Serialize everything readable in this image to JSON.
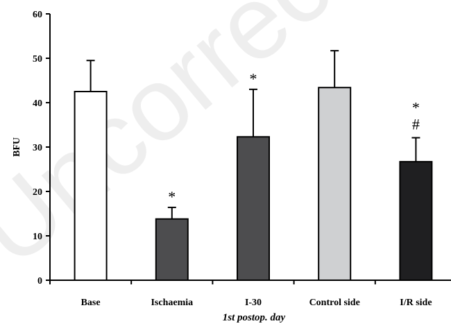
{
  "watermark": "Uncorrected",
  "chart_data": {
    "type": "bar",
    "categories": [
      "Base",
      "Ischaemia",
      "I-30",
      "Control side",
      "I/R side"
    ],
    "values": [
      42.5,
      13.8,
      32.3,
      43.4,
      26.7
    ],
    "errors": [
      7.0,
      2.6,
      10.7,
      8.3,
      5.4
    ],
    "bar_colors": [
      "#ffffff",
      "#4d4d4f",
      "#4d4d4f",
      "#cfd0d2",
      "#1f1f21"
    ],
    "markers": [
      [],
      [
        "*"
      ],
      [
        "*"
      ],
      [],
      [
        "*",
        "#"
      ]
    ],
    "ylabel": "BFU",
    "xlabel": "1st postop. day",
    "ylim": [
      0,
      60
    ],
    "yticks": [
      0,
      10,
      20,
      30,
      40,
      50,
      60
    ],
    "grid": false
  }
}
